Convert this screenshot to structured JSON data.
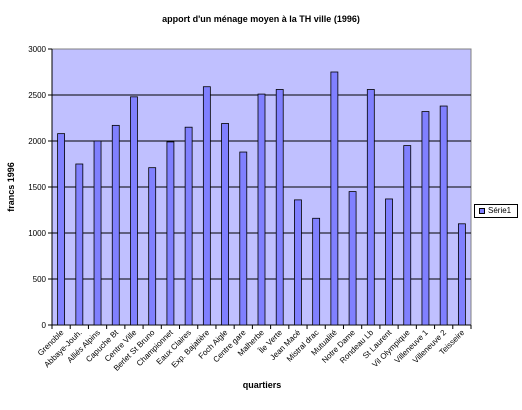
{
  "chart_data": {
    "type": "bar",
    "title": "apport d'un ménage moyen à la TH ville (1996)",
    "xlabel": "quartiers",
    "ylabel": "francs 1996",
    "ylim": [
      0,
      3000
    ],
    "yticks": [
      0,
      500,
      1000,
      1500,
      2000,
      2500,
      3000
    ],
    "grid": true,
    "legend": "right",
    "categories": [
      "Grenoble",
      "Abbaye-Jouh.",
      "Alliés Alpins",
      "Capuche Bt",
      "Centre Ville",
      "Berlet St Bruno",
      "Championnet",
      "Eaux Claires",
      "Exp. Bajatière",
      "Foch Aigle",
      "Centre gare",
      "Malherbe",
      "Île Verte",
      "Jean Macé",
      "Mistral drac",
      "Mutualité",
      "Notre Dame",
      "Rondeau Lb",
      "St Laurent",
      "Vil Olympique",
      "Villeneuve 1",
      "Villeneuve 2",
      "Teisseire"
    ],
    "series": [
      {
        "name": "Série1",
        "color": "#8080ff",
        "values": [
          2080,
          1750,
          2000,
          2170,
          2480,
          1710,
          1990,
          2150,
          2590,
          2190,
          1880,
          2510,
          2560,
          1360,
          1160,
          2750,
          1450,
          2560,
          1370,
          1950,
          2320,
          2380,
          1100
        ]
      }
    ],
    "colors": {
      "plot_background": "#c0c0ff",
      "bar_fill": "#8080ff",
      "bar_stroke": "#000000"
    }
  }
}
